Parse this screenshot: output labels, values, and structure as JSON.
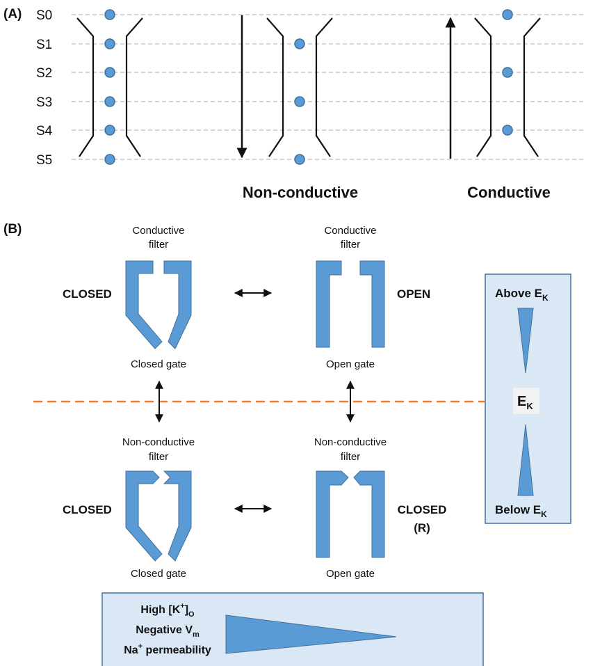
{
  "panel_a": {
    "label": "(A)",
    "sites": [
      "S0",
      "S1",
      "S2",
      "S3",
      "S4",
      "S5"
    ],
    "state_labels": {
      "non_conductive": "Non-conductive",
      "conductive": "Conductive"
    }
  },
  "panel_b": {
    "label": "(B)",
    "filters": {
      "conductive_line1": "Conductive",
      "conductive_line2": "filter",
      "nonconductive_line1": "Non-conductive",
      "nonconductive_line2": "filter"
    },
    "gates": {
      "closed": "Closed gate",
      "open": "Open gate"
    },
    "states": {
      "top_left": "CLOSED",
      "top_right": "OPEN",
      "bottom_left": "CLOSED",
      "bottom_right_line1": "CLOSED",
      "bottom_right_line2": "(R)"
    },
    "ek_box": {
      "above": "Above E",
      "center": "E",
      "below": "Below E",
      "subscript": "K"
    },
    "conditions": {
      "k_prefix": "High [K",
      "k_sup": "+",
      "k_mid": "]",
      "k_sub": "O",
      "vm_prefix": "Negative V",
      "vm_sub": "m",
      "na_prefix": "Na",
      "na_sup": "+",
      "na_suffix": " permeability"
    }
  },
  "colors": {
    "blue": "#5b9bd5",
    "blue_dark": "#41719c",
    "box_fill": "#dae8f5",
    "orange_dashed": "#ed7d31",
    "gray_dashed": "#aaaaaa"
  }
}
